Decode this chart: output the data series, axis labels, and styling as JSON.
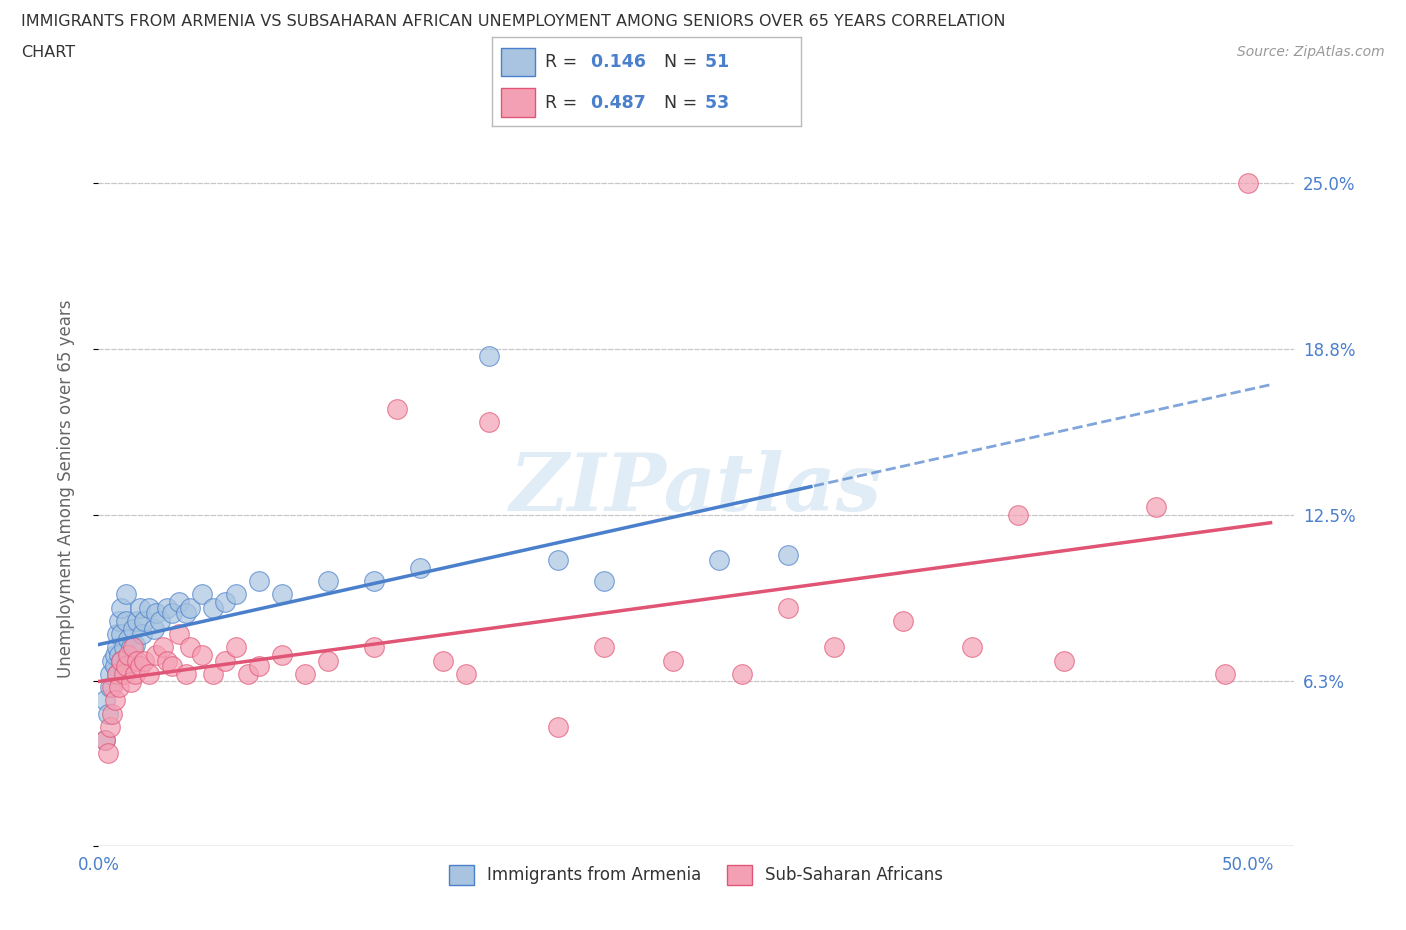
{
  "title_line1": "IMMIGRANTS FROM ARMENIA VS SUBSAHARAN AFRICAN UNEMPLOYMENT AMONG SENIORS OVER 65 YEARS CORRELATION",
  "title_line2": "CHART",
  "source": "Source: ZipAtlas.com",
  "ylabel": "Unemployment Among Seniors over 65 years",
  "x_ticks": [
    0.0,
    0.1,
    0.2,
    0.3,
    0.4,
    0.5
  ],
  "x_tick_labels": [
    "0.0%",
    "",
    "",
    "",
    "",
    "50.0%"
  ],
  "y_ticks": [
    0.0,
    0.0625,
    0.125,
    0.1875,
    0.25
  ],
  "y_tick_labels_right": [
    "",
    "6.3%",
    "12.5%",
    "18.8%",
    "25.0%"
  ],
  "ylim": [
    0.0,
    0.27
  ],
  "xlim": [
    0.0,
    0.52
  ],
  "legend_labels": [
    "Immigrants from Armenia",
    "Sub-Saharan Africans"
  ],
  "R_armenia": 0.146,
  "N_armenia": 51,
  "R_subsaharan": 0.487,
  "N_subsaharan": 53,
  "color_armenia": "#a8c4e0",
  "color_subsaharan": "#f4a0b4",
  "color_trendline_armenia": "#4a7fcb",
  "color_trendline_subsaharan": "#e05575",
  "watermark_text": "ZIPatlas",
  "background_color": "#ffffff",
  "grid_color": "#c8c8c8",
  "title_color": "#333333",
  "axis_label_color": "#4a7fcb",
  "armenia_x": [
    0.003,
    0.003,
    0.004,
    0.005,
    0.005,
    0.006,
    0.007,
    0.007,
    0.008,
    0.008,
    0.008,
    0.009,
    0.009,
    0.01,
    0.01,
    0.01,
    0.011,
    0.012,
    0.012,
    0.013,
    0.014,
    0.015,
    0.015,
    0.016,
    0.017,
    0.018,
    0.019,
    0.02,
    0.022,
    0.024,
    0.025,
    0.027,
    0.03,
    0.032,
    0.035,
    0.038,
    0.04,
    0.045,
    0.05,
    0.055,
    0.06,
    0.07,
    0.08,
    0.1,
    0.12,
    0.14,
    0.17,
    0.2,
    0.22,
    0.27,
    0.3
  ],
  "armenia_y": [
    0.04,
    0.055,
    0.05,
    0.06,
    0.065,
    0.07,
    0.068,
    0.072,
    0.065,
    0.075,
    0.08,
    0.072,
    0.085,
    0.07,
    0.08,
    0.09,
    0.075,
    0.085,
    0.095,
    0.078,
    0.075,
    0.07,
    0.082,
    0.076,
    0.085,
    0.09,
    0.08,
    0.085,
    0.09,
    0.082,
    0.088,
    0.085,
    0.09,
    0.088,
    0.092,
    0.088,
    0.09,
    0.095,
    0.09,
    0.092,
    0.095,
    0.1,
    0.095,
    0.1,
    0.1,
    0.105,
    0.185,
    0.108,
    0.1,
    0.108,
    0.11
  ],
  "subsaharan_x": [
    0.003,
    0.004,
    0.005,
    0.006,
    0.006,
    0.007,
    0.008,
    0.009,
    0.01,
    0.011,
    0.012,
    0.013,
    0.014,
    0.015,
    0.016,
    0.017,
    0.018,
    0.02,
    0.022,
    0.025,
    0.028,
    0.03,
    0.032,
    0.035,
    0.038,
    0.04,
    0.045,
    0.05,
    0.055,
    0.06,
    0.065,
    0.07,
    0.08,
    0.09,
    0.1,
    0.12,
    0.13,
    0.15,
    0.16,
    0.17,
    0.2,
    0.22,
    0.25,
    0.28,
    0.3,
    0.32,
    0.35,
    0.38,
    0.4,
    0.42,
    0.46,
    0.49,
    0.5
  ],
  "subsaharan_y": [
    0.04,
    0.035,
    0.045,
    0.05,
    0.06,
    0.055,
    0.065,
    0.06,
    0.07,
    0.065,
    0.068,
    0.072,
    0.062,
    0.075,
    0.065,
    0.07,
    0.068,
    0.07,
    0.065,
    0.072,
    0.075,
    0.07,
    0.068,
    0.08,
    0.065,
    0.075,
    0.072,
    0.065,
    0.07,
    0.075,
    0.065,
    0.068,
    0.072,
    0.065,
    0.07,
    0.075,
    0.165,
    0.07,
    0.065,
    0.16,
    0.045,
    0.075,
    0.07,
    0.065,
    0.09,
    0.075,
    0.085,
    0.075,
    0.125,
    0.07,
    0.128,
    0.065,
    0.25
  ]
}
